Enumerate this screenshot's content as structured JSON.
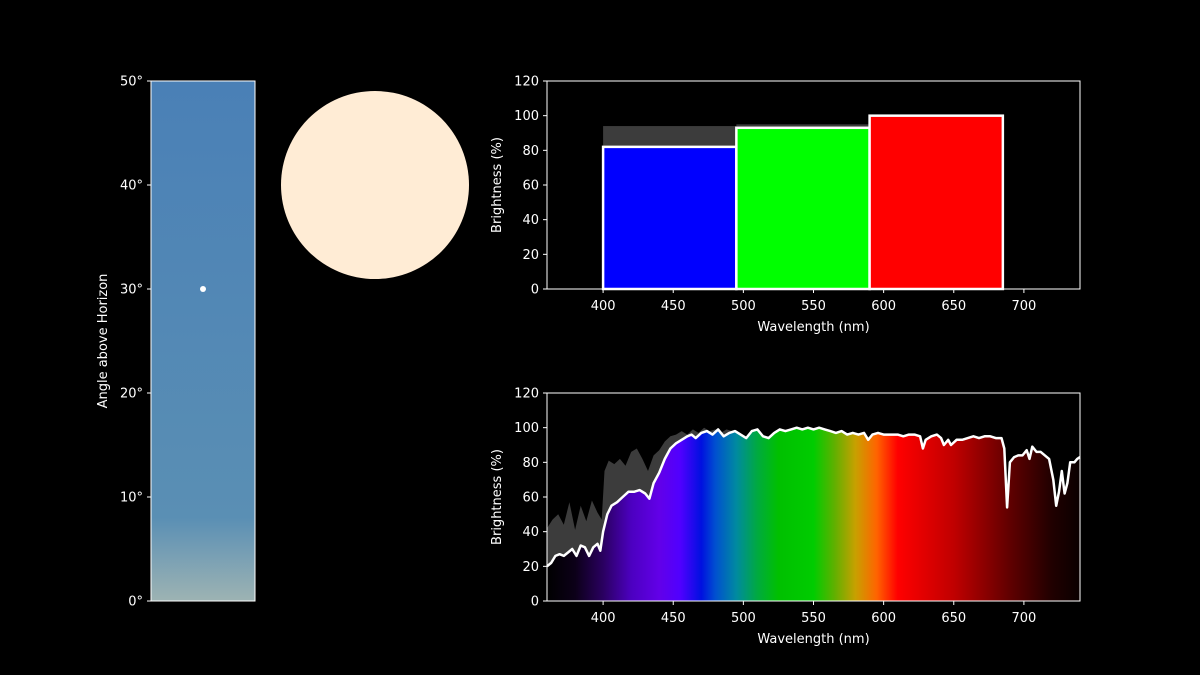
{
  "colors": {
    "background": "#000000",
    "axis": "#ffffff",
    "sky_top": "#4a80b6",
    "sky_mid": "#5a8fb4",
    "sky_bottom": "#9db3b3",
    "sun": "#ffecd5",
    "bar_blue": "#0000ff",
    "bar_green": "#00ff00",
    "bar_red": "#ff0000",
    "reference": "#3c3c3c",
    "sun_marker": "#ffffff"
  },
  "chart_data": [
    {
      "type": "bar",
      "ylabel": "Angle above Horizon",
      "ylim": [
        0,
        50
      ],
      "yticks": [
        "0°",
        "10°",
        "20°",
        "30°",
        "40°",
        "50°"
      ],
      "sun_angle": 30
    },
    {
      "type": "bar",
      "xlabel": "Wavelength (nm)",
      "ylabel": "Brightness (%)",
      "xlim": [
        360,
        740
      ],
      "ylim": [
        0,
        120
      ],
      "xticks": [
        "400",
        "450",
        "500",
        "550",
        "600",
        "650",
        "700"
      ],
      "yticks": [
        "0",
        "20",
        "40",
        "60",
        "80",
        "100",
        "120"
      ],
      "bars": [
        {
          "x0": 400,
          "x1": 495,
          "value": 82,
          "reference": 94,
          "color": "#0000ff"
        },
        {
          "x0": 495,
          "x1": 590,
          "value": 93,
          "reference": 95,
          "color": "#00ff00"
        },
        {
          "x0": 590,
          "x1": 685,
          "value": 100,
          "reference": 100,
          "color": "#ff0000"
        }
      ]
    },
    {
      "type": "area",
      "xlabel": "Wavelength (nm)",
      "ylabel": "Brightness (%)",
      "xlim": [
        360,
        740
      ],
      "ylim": [
        0,
        120
      ],
      "xticks": [
        "400",
        "450",
        "500",
        "550",
        "600",
        "650",
        "700"
      ],
      "yticks": [
        "0",
        "20",
        "40",
        "60",
        "80",
        "100",
        "120"
      ],
      "spectrum": [
        [
          360,
          20
        ],
        [
          363,
          22
        ],
        [
          366,
          26
        ],
        [
          369,
          27
        ],
        [
          372,
          26
        ],
        [
          375,
          28
        ],
        [
          378,
          30
        ],
        [
          381,
          26
        ],
        [
          384,
          32
        ],
        [
          387,
          31
        ],
        [
          390,
          26
        ],
        [
          393,
          31
        ],
        [
          396,
          33
        ],
        [
          398,
          29
        ],
        [
          400,
          40
        ],
        [
          403,
          50
        ],
        [
          406,
          55
        ],
        [
          410,
          57
        ],
        [
          414,
          60
        ],
        [
          418,
          63
        ],
        [
          422,
          63
        ],
        [
          426,
          64
        ],
        [
          430,
          62
        ],
        [
          433,
          59
        ],
        [
          436,
          68
        ],
        [
          440,
          74
        ],
        [
          444,
          82
        ],
        [
          448,
          88
        ],
        [
          452,
          91
        ],
        [
          456,
          93
        ],
        [
          460,
          95
        ],
        [
          463,
          96
        ],
        [
          466,
          94
        ],
        [
          470,
          97
        ],
        [
          474,
          98
        ],
        [
          478,
          96
        ],
        [
          482,
          99
        ],
        [
          486,
          95
        ],
        [
          490,
          97
        ],
        [
          494,
          98
        ],
        [
          498,
          96
        ],
        [
          502,
          94
        ],
        [
          506,
          98
        ],
        [
          510,
          99
        ],
        [
          514,
          95
        ],
        [
          518,
          94
        ],
        [
          522,
          97
        ],
        [
          526,
          99
        ],
        [
          530,
          98
        ],
        [
          534,
          99
        ],
        [
          538,
          100
        ],
        [
          542,
          99
        ],
        [
          546,
          100
        ],
        [
          550,
          99
        ],
        [
          554,
          100
        ],
        [
          558,
          99
        ],
        [
          562,
          98
        ],
        [
          566,
          97
        ],
        [
          570,
          98
        ],
        [
          574,
          96
        ],
        [
          578,
          97
        ],
        [
          582,
          96
        ],
        [
          586,
          97
        ],
        [
          589,
          93
        ],
        [
          592,
          96
        ],
        [
          596,
          97
        ],
        [
          600,
          96
        ],
        [
          605,
          96
        ],
        [
          610,
          96
        ],
        [
          614,
          95
        ],
        [
          618,
          96
        ],
        [
          622,
          96
        ],
        [
          626,
          95
        ],
        [
          628,
          88
        ],
        [
          630,
          93
        ],
        [
          634,
          95
        ],
        [
          638,
          96
        ],
        [
          641,
          94
        ],
        [
          643,
          90
        ],
        [
          646,
          93
        ],
        [
          648,
          90
        ],
        [
          652,
          93
        ],
        [
          656,
          93
        ],
        [
          660,
          94
        ],
        [
          664,
          95
        ],
        [
          668,
          94
        ],
        [
          672,
          95
        ],
        [
          676,
          95
        ],
        [
          680,
          94
        ],
        [
          684,
          94
        ],
        [
          686,
          88
        ],
        [
          688,
          54
        ],
        [
          690,
          80
        ],
        [
          693,
          83
        ],
        [
          696,
          84
        ],
        [
          699,
          84
        ],
        [
          702,
          87
        ],
        [
          704,
          82
        ],
        [
          706,
          89
        ],
        [
          709,
          86
        ],
        [
          712,
          86
        ],
        [
          715,
          84
        ],
        [
          718,
          82
        ],
        [
          721,
          70
        ],
        [
          723,
          55
        ],
        [
          725,
          63
        ],
        [
          727,
          75
        ],
        [
          729,
          62
        ],
        [
          731,
          68
        ],
        [
          733,
          80
        ],
        [
          736,
          80
        ],
        [
          738,
          82
        ],
        [
          740,
          83
        ]
      ],
      "reference": [
        [
          360,
          42
        ],
        [
          364,
          47
        ],
        [
          368,
          50
        ],
        [
          372,
          44
        ],
        [
          376,
          57
        ],
        [
          380,
          41
        ],
        [
          384,
          55
        ],
        [
          388,
          46
        ],
        [
          392,
          58
        ],
        [
          396,
          51
        ],
        [
          399,
          47
        ],
        [
          401,
          75
        ],
        [
          404,
          81
        ],
        [
          408,
          79
        ],
        [
          412,
          82
        ],
        [
          416,
          78
        ],
        [
          420,
          86
        ],
        [
          424,
          88
        ],
        [
          428,
          82
        ],
        [
          432,
          75
        ],
        [
          436,
          84
        ],
        [
          440,
          87
        ],
        [
          444,
          92
        ],
        [
          448,
          95
        ],
        [
          452,
          96
        ],
        [
          456,
          98
        ],
        [
          460,
          96
        ],
        [
          464,
          99
        ],
        [
          468,
          97
        ],
        [
          472,
          100
        ],
        [
          476,
          98
        ],
        [
          480,
          99
        ],
        [
          484,
          97
        ],
        [
          488,
          99
        ],
        [
          492,
          98
        ],
        [
          496,
          97
        ]
      ],
      "gradient_stops": [
        [
          360,
          "#000000"
        ],
        [
          380,
          "#0c0018"
        ],
        [
          400,
          "#2a0060"
        ],
        [
          420,
          "#4c00c0"
        ],
        [
          440,
          "#6200e8"
        ],
        [
          455,
          "#5000ff"
        ],
        [
          470,
          "#0010e0"
        ],
        [
          480,
          "#0050d0"
        ],
        [
          495,
          "#008aa0"
        ],
        [
          510,
          "#00aa40"
        ],
        [
          525,
          "#00c000"
        ],
        [
          550,
          "#00cc00"
        ],
        [
          565,
          "#60b000"
        ],
        [
          580,
          "#c8a000"
        ],
        [
          595,
          "#ff6400"
        ],
        [
          610,
          "#ff0000"
        ],
        [
          650,
          "#c00000"
        ],
        [
          690,
          "#600000"
        ],
        [
          720,
          "#200000"
        ],
        [
          740,
          "#0a0000"
        ]
      ]
    }
  ]
}
